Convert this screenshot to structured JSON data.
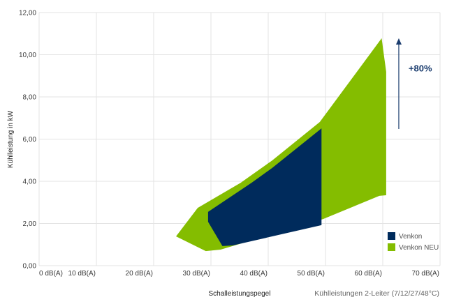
{
  "chart_data": {
    "type": "area",
    "title": "",
    "subtitle": "Kühlleistungen 2-Leiter (7/12/27/48°C)",
    "xlabel": "Schalleistungspegel",
    "ylabel": "Kühlleistung in kW",
    "xlim": [
      0,
      70
    ],
    "ylim": [
      0,
      12
    ],
    "grid": true,
    "legend_position": "bottom-right",
    "x_ticks": [
      0,
      10,
      20,
      30,
      40,
      50,
      60,
      70
    ],
    "x_tick_labels": [
      "0 dB(A)",
      "10 dB(A)",
      "20 dB(A)",
      "30 dB(A)",
      "40 dB(A)",
      "50 dB(A)",
      "60 dB(A)",
      "70 dB(A)"
    ],
    "y_ticks": [
      0,
      2,
      4,
      6,
      8,
      10,
      12
    ],
    "y_tick_labels": [
      "0,00",
      "2,00",
      "4,00",
      "6,00",
      "8,00",
      "10,00",
      "12,00"
    ],
    "series": [
      {
        "name": "Venkon NEU",
        "color": "#84bd00",
        "polygon": [
          [
            23.9,
            1.39
          ],
          [
            27.7,
            2.74
          ],
          [
            35.2,
            3.93
          ],
          [
            40.7,
            4.99
          ],
          [
            49.0,
            6.81
          ],
          [
            59.8,
            10.78
          ],
          [
            60.6,
            9.19
          ],
          [
            60.6,
            3.34
          ],
          [
            59.4,
            3.31
          ],
          [
            49.6,
            2.21
          ],
          [
            31.7,
            0.76
          ],
          [
            29.1,
            0.69
          ]
        ]
      },
      {
        "name": "Venkon",
        "color": "#002b5c",
        "polygon": [
          [
            29.5,
            2.55
          ],
          [
            37.1,
            3.93
          ],
          [
            40.7,
            4.63
          ],
          [
            49.3,
            6.51
          ],
          [
            49.3,
            1.92
          ],
          [
            33.8,
            0.96
          ],
          [
            32.0,
            0.93
          ],
          [
            29.5,
            2.08
          ]
        ]
      }
    ],
    "annotations": [
      {
        "type": "arrow",
        "x": 62.8,
        "y_from": 6.48,
        "y_to": 10.78,
        "color": "#1a3c6e"
      },
      {
        "type": "text",
        "text": "+80%",
        "x": 64.5,
        "y": 9.2,
        "color": "#1a3c6e"
      }
    ]
  },
  "legend": {
    "items": [
      {
        "label": "Venkon",
        "color": "#002b5c"
      },
      {
        "label": "Venkon NEU",
        "color": "#84bd00"
      }
    ]
  }
}
